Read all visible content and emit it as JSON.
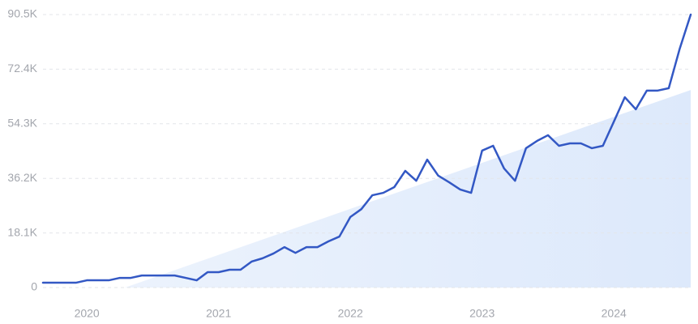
{
  "chart_data": {
    "type": "line",
    "categories": [
      null,
      null,
      null,
      null,
      "2020",
      null,
      null,
      null,
      null,
      null,
      null,
      null,
      null,
      null,
      null,
      null,
      "2021",
      null,
      null,
      null,
      null,
      null,
      null,
      null,
      null,
      null,
      null,
      null,
      "2022",
      null,
      null,
      null,
      null,
      null,
      null,
      null,
      null,
      null,
      null,
      null,
      "2023",
      null,
      null,
      null,
      null,
      null,
      null,
      null,
      null,
      null,
      null,
      null,
      "2024",
      null,
      null,
      null,
      null,
      null,
      null,
      null
    ],
    "series": [
      {
        "color": "#3358c4",
        "values": [
          1600,
          1600,
          1600,
          1600,
          2400,
          2400,
          2400,
          3200,
          3200,
          4000,
          4000,
          4000,
          4000,
          3200,
          2400,
          5100,
          5100,
          5900,
          5900,
          8600,
          9700,
          11300,
          13400,
          11500,
          13400,
          13400,
          15300,
          16900,
          23400,
          26000,
          30600,
          31400,
          33300,
          38700,
          35400,
          42400,
          37100,
          34900,
          32500,
          31400,
          45400,
          47000,
          39500,
          35400,
          46200,
          48600,
          50500,
          47000,
          47800,
          47800,
          46200,
          47000,
          55000,
          63100,
          59100,
          65300,
          65300,
          66100,
          79200,
          90500
        ]
      }
    ],
    "trend": [
      -9500,
      65500
    ],
    "ylim": [
      0,
      90500
    ],
    "yticks": [
      0,
      {
        "value": 18100,
        "label": "18.1K"
      },
      {
        "value": 36200,
        "label": "36.2K"
      },
      {
        "value": 54300,
        "label": "54.3K"
      },
      {
        "value": 72400,
        "label": "72.4K"
      },
      {
        "value": 90500,
        "label": "90.5K"
      }
    ],
    "grid": true
  }
}
